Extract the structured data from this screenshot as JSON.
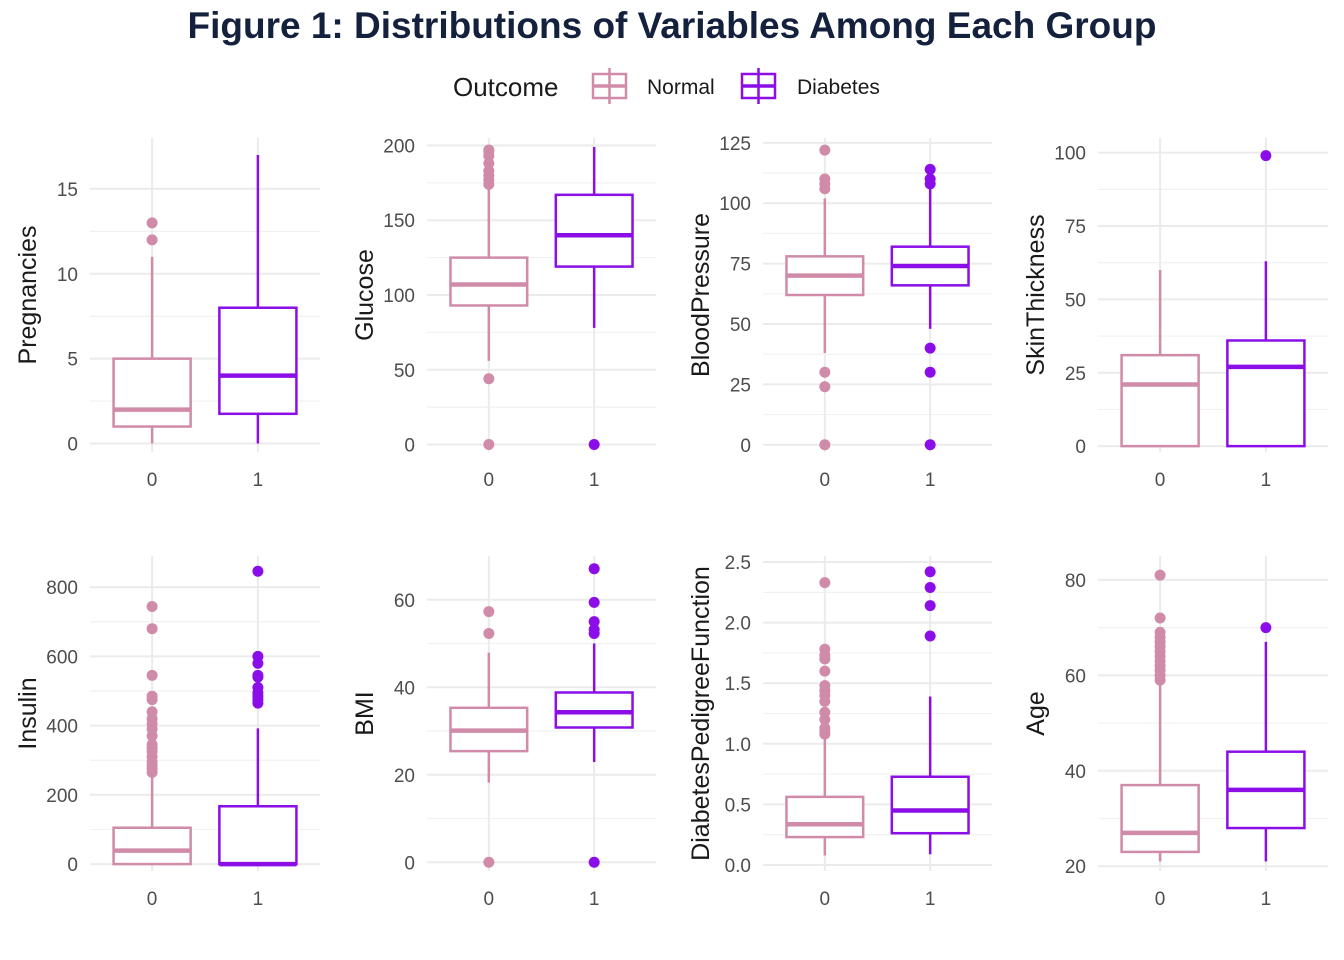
{
  "figure": {
    "title": "Figure 1: Distributions of Variables Among Each Group",
    "legend": {
      "title": "Outcome",
      "items": [
        {
          "label": "Normal",
          "color": "#d08ba8"
        },
        {
          "label": "Diabetes",
          "color": "#8b0ee8"
        }
      ]
    }
  },
  "chart_data": [
    {
      "type": "boxplot",
      "ylabel": "Pregnancies",
      "categories": [
        "0",
        "1"
      ],
      "ylim": [
        -0.5,
        18
      ],
      "yticks": [
        0,
        5,
        10,
        15
      ],
      "boxes": [
        {
          "group": "Normal",
          "min": 0,
          "q1": 1,
          "median": 2,
          "q3": 5,
          "max": 11,
          "outliers": [
            12,
            13
          ]
        },
        {
          "group": "Diabetes",
          "min": 0,
          "q1": 1.75,
          "median": 4,
          "q3": 8,
          "max": 17,
          "outliers": []
        }
      ]
    },
    {
      "type": "boxplot",
      "ylabel": "Glucose",
      "categories": [
        "0",
        "1"
      ],
      "ylim": [
        -5,
        205
      ],
      "yticks": [
        0,
        50,
        100,
        150,
        200
      ],
      "boxes": [
        {
          "group": "Normal",
          "min": 56,
          "q1": 93,
          "median": 107,
          "q3": 125,
          "max": 172,
          "outliers": [
            0,
            44,
            174,
            177,
            180,
            183,
            188,
            193,
            196,
            197
          ]
        },
        {
          "group": "Diabetes",
          "min": 78,
          "q1": 119,
          "median": 140,
          "q3": 167,
          "max": 199,
          "outliers": [
            0
          ]
        }
      ]
    },
    {
      "type": "boxplot",
      "ylabel": "BloodPressure",
      "categories": [
        "0",
        "1"
      ],
      "ylim": [
        -3,
        127
      ],
      "yticks": [
        0,
        25,
        50,
        75,
        100,
        125
      ],
      "boxes": [
        {
          "group": "Normal",
          "min": 38,
          "q1": 62,
          "median": 70,
          "q3": 78,
          "max": 102,
          "outliers": [
            0,
            24,
            30,
            106,
            108,
            110,
            122
          ]
        },
        {
          "group": "Diabetes",
          "min": 48,
          "q1": 66,
          "median": 74,
          "q3": 82,
          "max": 106,
          "outliers": [
            0,
            30,
            40,
            108,
            110,
            114
          ]
        }
      ]
    },
    {
      "type": "boxplot",
      "ylabel": "SkinThickness",
      "categories": [
        "0",
        "1"
      ],
      "ylim": [
        -2,
        105
      ],
      "yticks": [
        0,
        25,
        50,
        75,
        100
      ],
      "boxes": [
        {
          "group": "Normal",
          "min": 0,
          "q1": 0,
          "median": 21,
          "q3": 31,
          "max": 60,
          "outliers": []
        },
        {
          "group": "Diabetes",
          "min": 0,
          "q1": 0,
          "median": 27,
          "q3": 36,
          "max": 63,
          "outliers": [
            99
          ]
        }
      ]
    },
    {
      "type": "boxplot",
      "ylabel": "Insulin",
      "categories": [
        "0",
        "1"
      ],
      "ylim": [
        -20,
        890
      ],
      "yticks": [
        0,
        200,
        400,
        600,
        800
      ],
      "boxes": [
        {
          "group": "Normal",
          "min": 0,
          "q1": 0,
          "median": 39,
          "q3": 105,
          "max": 260,
          "outliers": [
            265,
            275,
            285,
            295,
            310,
            325,
            335,
            345,
            370,
            390,
            405,
            420,
            440,
            475,
            485,
            545,
            680,
            744
          ]
        },
        {
          "group": "Diabetes",
          "min": 0,
          "q1": 0,
          "median": 0,
          "q3": 167,
          "max": 392,
          "outliers": [
            465,
            475,
            485,
            495,
            510,
            540,
            545,
            580,
            600,
            846
          ]
        }
      ]
    },
    {
      "type": "boxplot",
      "ylabel": "BMI",
      "categories": [
        "0",
        "1"
      ],
      "ylim": [
        -2,
        70
      ],
      "yticks": [
        0,
        20,
        40,
        60
      ],
      "boxes": [
        {
          "group": "Normal",
          "min": 18.2,
          "q1": 25.4,
          "median": 30.1,
          "q3": 35.3,
          "max": 47.9,
          "outliers": [
            0,
            52.3,
            57.3
          ]
        },
        {
          "group": "Diabetes",
          "min": 22.9,
          "q1": 30.8,
          "median": 34.3,
          "q3": 38.8,
          "max": 50,
          "outliers": [
            0,
            52.3,
            53.2,
            55,
            59.4,
            67.1
          ]
        }
      ]
    },
    {
      "type": "boxplot",
      "ylabel": "DiabetesPedigreeFunction",
      "categories": [
        "0",
        "1"
      ],
      "ylim": [
        -0.05,
        2.55
      ],
      "yticks": [
        0.0,
        0.5,
        1.0,
        1.5,
        2.0,
        2.5
      ],
      "boxes": [
        {
          "group": "Normal",
          "min": 0.078,
          "q1": 0.23,
          "median": 0.336,
          "q3": 0.562,
          "max": 1.05,
          "outliers": [
            1.08,
            1.1,
            1.13,
            1.2,
            1.26,
            1.35,
            1.4,
            1.44,
            1.48,
            1.6,
            1.7,
            1.73,
            1.78,
            2.33
          ]
        },
        {
          "group": "Diabetes",
          "min": 0.088,
          "q1": 0.262,
          "median": 0.449,
          "q3": 0.728,
          "max": 1.39,
          "outliers": [
            1.89,
            2.14,
            2.29,
            2.42
          ]
        }
      ]
    },
    {
      "type": "boxplot",
      "ylabel": "Age",
      "categories": [
        "0",
        "1"
      ],
      "ylim": [
        19,
        85
      ],
      "yticks": [
        20,
        40,
        60,
        80
      ],
      "boxes": [
        {
          "group": "Normal",
          "min": 21,
          "q1": 23,
          "median": 27,
          "q3": 37,
          "max": 58,
          "outliers": [
            59,
            60,
            61,
            62,
            63,
            64,
            65,
            66,
            67,
            68,
            69,
            72,
            81
          ]
        },
        {
          "group": "Diabetes",
          "min": 21,
          "q1": 28,
          "median": 36,
          "q3": 44,
          "max": 67,
          "outliers": [
            70
          ]
        }
      ]
    }
  ]
}
